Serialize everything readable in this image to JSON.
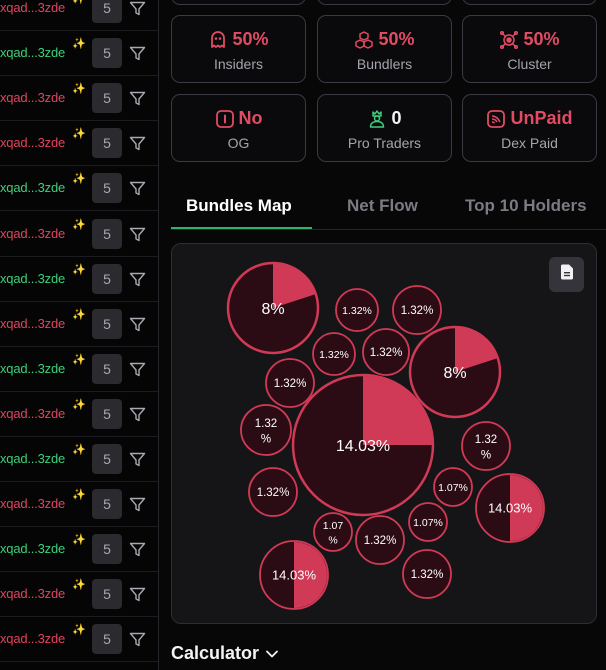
{
  "holders_list": {
    "rows": [
      {
        "address": "xqad...3zde",
        "color": "red",
        "count": "5"
      },
      {
        "address": "xqad...3zde",
        "color": "green",
        "count": "5"
      },
      {
        "address": "xqad...3zde",
        "color": "red",
        "count": "5"
      },
      {
        "address": "xqad...3zde",
        "color": "red",
        "count": "5"
      },
      {
        "address": "xqad...3zde",
        "color": "green",
        "count": "5"
      },
      {
        "address": "xqad...3zde",
        "color": "red",
        "count": "5"
      },
      {
        "address": "xqad...3zde",
        "color": "green",
        "count": "5"
      },
      {
        "address": "xqad...3zde",
        "color": "red",
        "count": "5"
      },
      {
        "address": "xqad...3zde",
        "color": "green",
        "count": "5"
      },
      {
        "address": "xqad...3zde",
        "color": "red",
        "count": "5"
      },
      {
        "address": "xqad...3zde",
        "color": "green",
        "count": "5"
      },
      {
        "address": "xqad...3zde",
        "color": "red",
        "count": "5"
      },
      {
        "address": "xqad...3zde",
        "color": "green",
        "count": "5"
      },
      {
        "address": "xqad...3zde",
        "color": "red",
        "count": "5"
      },
      {
        "address": "xqad...3zde",
        "color": "red",
        "count": "5"
      }
    ]
  },
  "stats": {
    "insiders": {
      "value": "50%",
      "label": "Insiders",
      "icon": "ghost-icon"
    },
    "bundlers": {
      "value": "50%",
      "label": "Bundlers",
      "icon": "cubes-icon"
    },
    "cluster": {
      "value": "50%",
      "label": "Cluster",
      "icon": "cluster-icon"
    },
    "og": {
      "value": "No",
      "label": "OG",
      "icon": "og-icon"
    },
    "pro_traders": {
      "value": "0",
      "label": "Pro Traders",
      "icon": "crown-user-icon"
    },
    "dex_paid": {
      "value": "UnPaid",
      "label": "Dex Paid",
      "icon": "dex-icon"
    }
  },
  "tabs": {
    "bundles_map": "Bundles Map",
    "net_flow": "Net Flow",
    "top_holders": "Top 10 Holders"
  },
  "bubble_map": {
    "colors": {
      "accent": "#d13a56",
      "fill": "#2c0c14",
      "stroke": "#d13a56"
    },
    "bubbles": [
      {
        "label": "8%",
        "value": 8,
        "share": 0.2
      },
      {
        "label": "1.32%",
        "value": 1.32,
        "share": 0
      },
      {
        "label": "1.32%",
        "value": 1.32,
        "share": 0
      },
      {
        "label": "1.32%",
        "value": 1.32,
        "share": 0
      },
      {
        "label": "1.32%",
        "value": 1.32,
        "share": 0
      },
      {
        "label": "8%",
        "value": 8,
        "share": 0.2
      },
      {
        "label": "1.32%",
        "value": 1.32,
        "share": 0
      },
      {
        "label": "1.32 %",
        "value": 1.32,
        "share": 0
      },
      {
        "label": "14.03%",
        "value": 14.03,
        "share": 0.25
      },
      {
        "label": "1.32 %",
        "value": 1.32,
        "share": 0
      },
      {
        "label": "1.32%",
        "value": 1.32,
        "share": 0
      },
      {
        "label": "1.07%",
        "value": 1.07,
        "share": 0
      },
      {
        "label": "14.03%",
        "value": 14.03,
        "share": 0.5
      },
      {
        "label": "1.07 %",
        "value": 1.07,
        "share": 0
      },
      {
        "label": "1.32%",
        "value": 1.32,
        "share": 0
      },
      {
        "label": "1.07%",
        "value": 1.07,
        "share": 0
      },
      {
        "label": "14.03%",
        "value": 14.03,
        "share": 0.5
      },
      {
        "label": "1.32%",
        "value": 1.32,
        "share": 0
      }
    ]
  },
  "calculator": {
    "label": "Calculator"
  }
}
